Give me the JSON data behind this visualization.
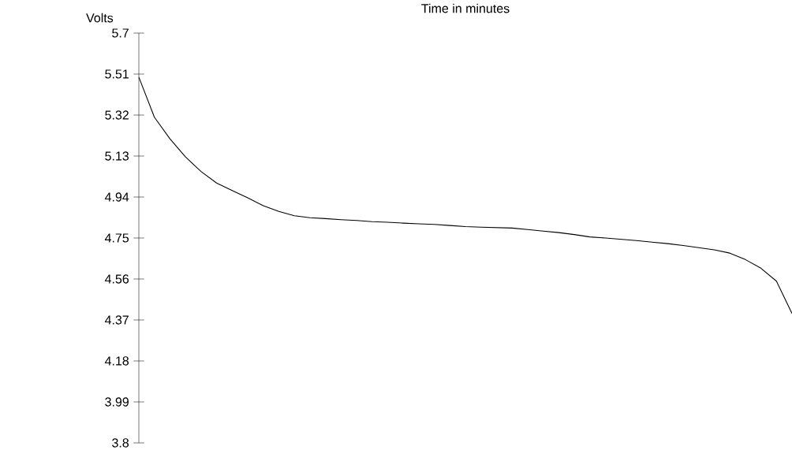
{
  "chart_data": {
    "type": "line",
    "title": "Time in minutes",
    "ylabel": "Volts",
    "categories": [
      null,
      null,
      null,
      null,
      null,
      null,
      null,
      null,
      null,
      null,
      null,
      null,
      null,
      null,
      null,
      null,
      null,
      null,
      null,
      null,
      null,
      null,
      null,
      null,
      null,
      null,
      null,
      null,
      null,
      null,
      null,
      null,
      null,
      null,
      null,
      null,
      null,
      null,
      null,
      null,
      null,
      null,
      null
    ],
    "series": [
      {
        "color": "#000000",
        "values": [
          5.496,
          5.31,
          5.21,
          5.126,
          5.058,
          5.005,
          4.97,
          4.936,
          4.9,
          4.873,
          4.853,
          4.844,
          4.84,
          4.835,
          4.831,
          4.826,
          4.823,
          4.819,
          4.816,
          4.813,
          4.808,
          4.803,
          4.8,
          4.798,
          4.796,
          4.789,
          4.782,
          4.775,
          4.766,
          4.755,
          4.75,
          4.744,
          4.738,
          4.731,
          4.724,
          4.715,
          4.705,
          4.695,
          4.68,
          4.65,
          4.61,
          4.55,
          4.4
        ]
      }
    ],
    "ylim": [
      3.8,
      5.7
    ],
    "yticks": [
      3.8,
      3.99,
      4.18,
      4.37,
      4.56,
      4.75,
      4.94,
      5.13,
      5.32,
      5.51,
      5.7
    ],
    "tick_labels": "y"
  }
}
